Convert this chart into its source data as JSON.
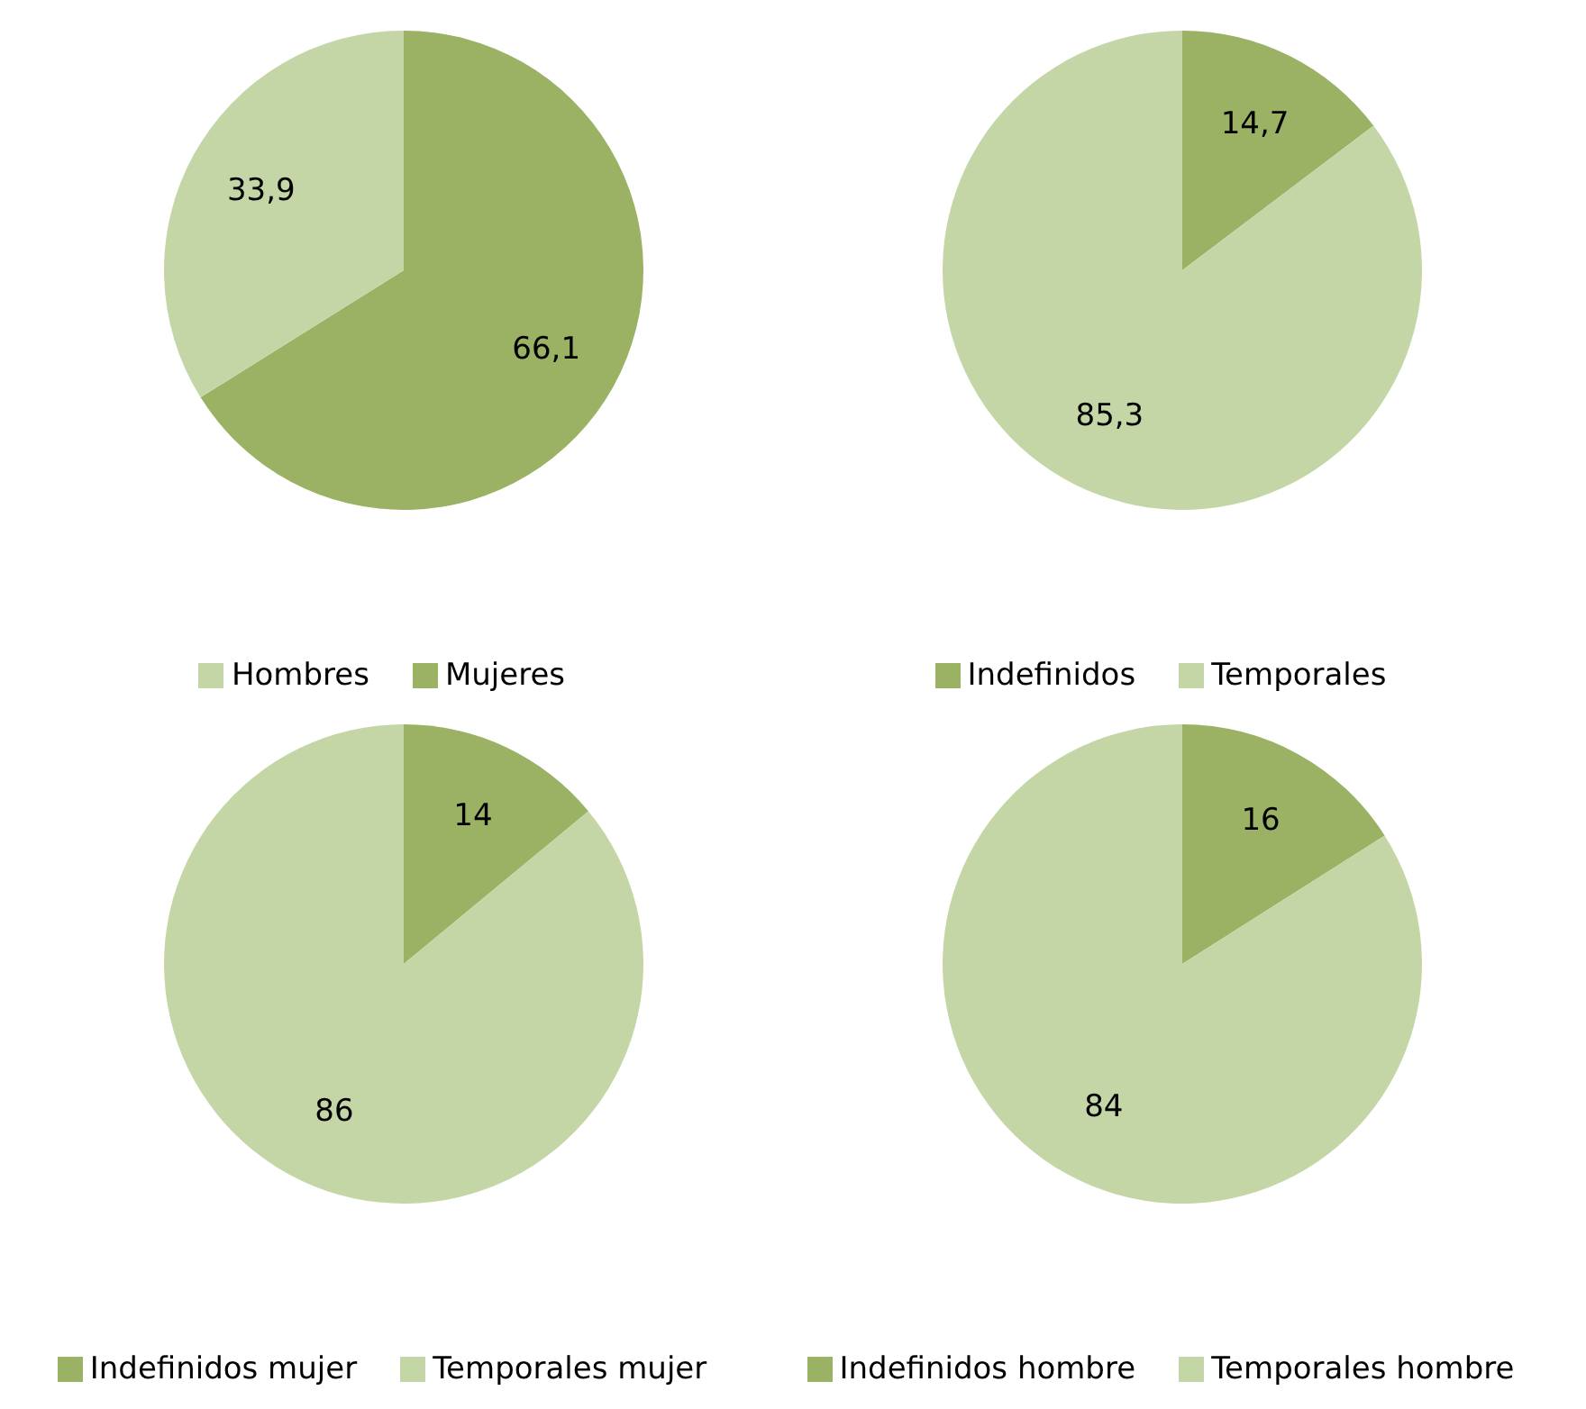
{
  "chart_data": [
    {
      "type": "pie",
      "categories": [
        "Mujeres",
        "Hombres"
      ],
      "values": [
        66.1,
        33.9
      ],
      "colors": [
        "#9bb163",
        "#c4d6a6"
      ],
      "value_labels": [
        "66,1",
        "33,9"
      ],
      "legend": "bottom"
    },
    {
      "type": "pie",
      "categories": [
        "Indefinidos",
        "Temporales"
      ],
      "values": [
        14.7,
        85.3
      ],
      "colors": [
        "#9bb163",
        "#c4d6a6"
      ],
      "value_labels": [
        "14,7",
        "85,3"
      ],
      "legend": "bottom"
    },
    {
      "type": "pie",
      "categories": [
        "Indefinidos mujer",
        "Temporales mujer"
      ],
      "values": [
        14,
        86
      ],
      "colors": [
        "#9bb163",
        "#c4d6a6"
      ],
      "value_labels": [
        "14",
        "86"
      ],
      "legend": "bottom"
    },
    {
      "type": "pie",
      "categories": [
        "Indefinidos hombre",
        "Temporales hombre"
      ],
      "values": [
        16,
        84
      ],
      "colors": [
        "#9bb163",
        "#c4d6a6"
      ],
      "value_labels": [
        "16",
        "84"
      ],
      "legend": "bottom"
    }
  ]
}
